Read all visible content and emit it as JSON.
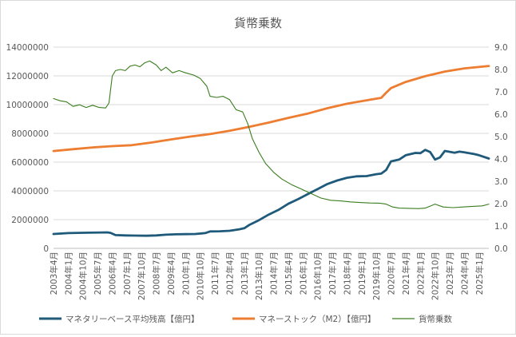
{
  "chart_data": {
    "type": "line",
    "title": "貨幣乗数",
    "xlabel": "",
    "ylabel": "",
    "y_left_lim": [
      0,
      14000000
    ],
    "y_left_ticks": [
      0,
      2000000,
      4000000,
      6000000,
      8000000,
      10000000,
      12000000,
      14000000
    ],
    "y_right_lim": [
      0,
      9
    ],
    "y_right_ticks": [
      "0.0",
      "1.0",
      "2.0",
      "3.0",
      "4.0",
      "5.0",
      "6.0",
      "7.0",
      "8.0",
      "9.0"
    ],
    "x_start": "2003-04",
    "x_end": "2025-07",
    "x_tick_labels": [
      "2003年4月",
      "2004年1月",
      "2004年10月",
      "2005年7月",
      "2006年4月",
      "2007年1月",
      "2007年10月",
      "2008年7月",
      "2009年4月",
      "2010年1月",
      "2010年10月",
      "2011年7月",
      "2012年4月",
      "2013年1月",
      "2013年10月",
      "2014年7月",
      "2015年4月",
      "2016年1月",
      "2016年10月",
      "2017年7月",
      "2018年4月",
      "2019年1月",
      "2019年10月",
      "2020年7月",
      "2021年4月",
      "2022年1月",
      "2022年10月",
      "2023年7月",
      "2024年4月",
      "2025年1月"
    ],
    "grid": true,
    "legend_position": "bottom",
    "series": [
      {
        "name": "マネタリーベース平均残高【億円】",
        "axis": "left",
        "color": "#1f5a7a",
        "points": [
          [
            "2003-04",
            1000000
          ],
          [
            "2004-01",
            1060000
          ],
          [
            "2005-01",
            1090000
          ],
          [
            "2006-01",
            1110000
          ],
          [
            "2006-03",
            1080000
          ],
          [
            "2006-06",
            920000
          ],
          [
            "2006-12",
            900000
          ],
          [
            "2007-06",
            890000
          ],
          [
            "2008-01",
            880000
          ],
          [
            "2008-07",
            900000
          ],
          [
            "2009-01",
            950000
          ],
          [
            "2009-07",
            980000
          ],
          [
            "2010-01",
            990000
          ],
          [
            "2010-07",
            1000000
          ],
          [
            "2011-01",
            1060000
          ],
          [
            "2011-04",
            1180000
          ],
          [
            "2011-10",
            1190000
          ],
          [
            "2012-04",
            1220000
          ],
          [
            "2012-10",
            1330000
          ],
          [
            "2013-01",
            1400000
          ],
          [
            "2013-04",
            1620000
          ],
          [
            "2013-10",
            1960000
          ],
          [
            "2014-04",
            2350000
          ],
          [
            "2014-10",
            2680000
          ],
          [
            "2015-04",
            3100000
          ],
          [
            "2015-10",
            3420000
          ],
          [
            "2016-04",
            3780000
          ],
          [
            "2016-10",
            4120000
          ],
          [
            "2017-04",
            4480000
          ],
          [
            "2017-10",
            4720000
          ],
          [
            "2018-04",
            4910000
          ],
          [
            "2018-10",
            5010000
          ],
          [
            "2019-04",
            5030000
          ],
          [
            "2019-10",
            5160000
          ],
          [
            "2020-01",
            5200000
          ],
          [
            "2020-04",
            5450000
          ],
          [
            "2020-07",
            6050000
          ],
          [
            "2020-12",
            6180000
          ],
          [
            "2021-04",
            6480000
          ],
          [
            "2021-10",
            6640000
          ],
          [
            "2022-01",
            6620000
          ],
          [
            "2022-04",
            6850000
          ],
          [
            "2022-07",
            6700000
          ],
          [
            "2022-10",
            6180000
          ],
          [
            "2023-01",
            6330000
          ],
          [
            "2023-04",
            6780000
          ],
          [
            "2023-10",
            6650000
          ],
          [
            "2024-01",
            6730000
          ],
          [
            "2024-04",
            6680000
          ],
          [
            "2024-10",
            6560000
          ],
          [
            "2025-01",
            6480000
          ],
          [
            "2025-07",
            6250000
          ]
        ]
      },
      {
        "name": "マネーストック（M2）【億円】",
        "axis": "left",
        "color": "#ed7d31",
        "points": [
          [
            "2003-04",
            6770000
          ],
          [
            "2004-04",
            6900000
          ],
          [
            "2005-04",
            7020000
          ],
          [
            "2006-04",
            7110000
          ],
          [
            "2007-04",
            7180000
          ],
          [
            "2008-04",
            7360000
          ],
          [
            "2009-04",
            7580000
          ],
          [
            "2010-04",
            7780000
          ],
          [
            "2011-04",
            7950000
          ],
          [
            "2012-04",
            8180000
          ],
          [
            "2013-04",
            8450000
          ],
          [
            "2014-04",
            8750000
          ],
          [
            "2015-04",
            9080000
          ],
          [
            "2016-04",
            9380000
          ],
          [
            "2017-04",
            9750000
          ],
          [
            "2018-04",
            10060000
          ],
          [
            "2019-04",
            10300000
          ],
          [
            "2020-01",
            10470000
          ],
          [
            "2020-04",
            10830000
          ],
          [
            "2020-07",
            11150000
          ],
          [
            "2021-04",
            11580000
          ],
          [
            "2022-04",
            11980000
          ],
          [
            "2023-04",
            12300000
          ],
          [
            "2024-04",
            12520000
          ],
          [
            "2025-07",
            12690000
          ]
        ]
      },
      {
        "name": "貨幣乗数",
        "axis": "right",
        "color": "#3a7d1e",
        "points": [
          [
            "2003-04",
            6.7
          ],
          [
            "2003-08",
            6.6
          ],
          [
            "2003-12",
            6.55
          ],
          [
            "2004-04",
            6.35
          ],
          [
            "2004-08",
            6.42
          ],
          [
            "2004-12",
            6.3
          ],
          [
            "2005-04",
            6.4
          ],
          [
            "2005-08",
            6.3
          ],
          [
            "2005-12",
            6.28
          ],
          [
            "2006-02",
            6.5
          ],
          [
            "2006-04",
            7.7
          ],
          [
            "2006-06",
            7.95
          ],
          [
            "2006-09",
            8.0
          ],
          [
            "2006-12",
            7.95
          ],
          [
            "2007-03",
            8.15
          ],
          [
            "2007-06",
            8.2
          ],
          [
            "2007-09",
            8.12
          ],
          [
            "2007-12",
            8.3
          ],
          [
            "2008-03",
            8.38
          ],
          [
            "2008-07",
            8.2
          ],
          [
            "2008-10",
            7.95
          ],
          [
            "2009-01",
            8.1
          ],
          [
            "2009-05",
            7.85
          ],
          [
            "2009-09",
            7.95
          ],
          [
            "2010-01",
            7.85
          ],
          [
            "2010-06",
            7.75
          ],
          [
            "2010-10",
            7.6
          ],
          [
            "2011-02",
            7.25
          ],
          [
            "2011-04",
            6.8
          ],
          [
            "2011-08",
            6.75
          ],
          [
            "2011-12",
            6.8
          ],
          [
            "2012-04",
            6.65
          ],
          [
            "2012-08",
            6.2
          ],
          [
            "2012-12",
            6.1
          ],
          [
            "2013-03",
            5.6
          ],
          [
            "2013-06",
            4.9
          ],
          [
            "2013-10",
            4.3
          ],
          [
            "2014-02",
            3.8
          ],
          [
            "2014-07",
            3.4
          ],
          [
            "2014-12",
            3.1
          ],
          [
            "2015-06",
            2.85
          ],
          [
            "2015-12",
            2.65
          ],
          [
            "2016-06",
            2.45
          ],
          [
            "2016-12",
            2.25
          ],
          [
            "2017-06",
            2.15
          ],
          [
            "2017-12",
            2.12
          ],
          [
            "2018-06",
            2.08
          ],
          [
            "2018-12",
            2.05
          ],
          [
            "2019-06",
            2.03
          ],
          [
            "2019-12",
            2.02
          ],
          [
            "2020-04",
            1.98
          ],
          [
            "2020-08",
            1.85
          ],
          [
            "2020-12",
            1.8
          ],
          [
            "2021-06",
            1.79
          ],
          [
            "2021-12",
            1.78
          ],
          [
            "2022-04",
            1.8
          ],
          [
            "2022-10",
            1.98
          ],
          [
            "2023-03",
            1.85
          ],
          [
            "2023-09",
            1.82
          ],
          [
            "2024-03",
            1.85
          ],
          [
            "2024-09",
            1.88
          ],
          [
            "2025-03",
            1.9
          ],
          [
            "2025-07",
            1.98
          ]
        ]
      }
    ]
  }
}
